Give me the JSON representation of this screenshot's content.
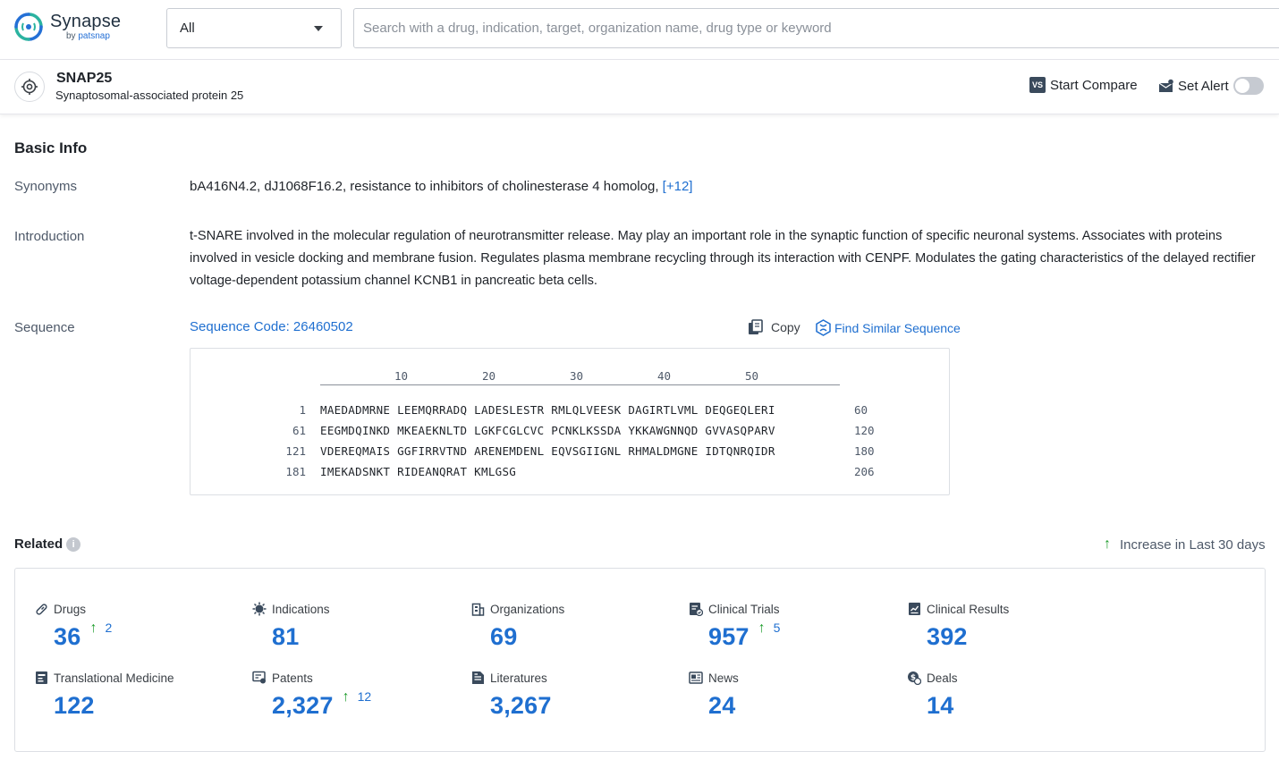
{
  "header": {
    "logo_name": "Synapse",
    "logo_by": "by",
    "logo_brand": "patsnap",
    "scope": "All",
    "search_placeholder": "Search with a drug, indication, target, organization name, drug type or keyword"
  },
  "entity": {
    "symbol": "SNAP25",
    "full_name": "Synaptosomal-associated protein 25",
    "start_compare_badge": "VS",
    "start_compare": "Start Compare",
    "set_alert": "Set Alert",
    "alert_on": false
  },
  "basic_info": {
    "title": "Basic Info",
    "synonyms_label": "Synonyms",
    "synonyms": "bA416N4.2,  dJ1068F16.2,  resistance to inhibitors of cholinesterase 4 homolog,",
    "synonyms_more": "[+12]",
    "introduction_label": "Introduction",
    "introduction": "t-SNARE involved in the molecular regulation of neurotransmitter release. May play an important role in the synaptic function of specific neuronal systems. Associates with proteins involved in vesicle docking and membrane fusion. Regulates plasma membrane recycling through its interaction with CENPF. Modulates the gating characteristics of the delayed rectifier voltage-dependent potassium channel KCNB1 in pancreatic beta cells.",
    "sequence_label": "Sequence",
    "sequence_code": "Sequence Code: 26460502",
    "copy": "Copy",
    "find_similar": "Find Similar Sequence",
    "ruler": [
      "10",
      "20",
      "30",
      "40",
      "50"
    ],
    "rows": [
      {
        "start": "1",
        "seq": "MAEDADMRNE LEEMQRRADQ LADESLESTR RMLQLVEESK DAGIRTLVML DEQGEQLERI",
        "end": "60"
      },
      {
        "start": "61",
        "seq": "EEGMDQINKD MKEAEKNLTD LGKFCGLCVC PCNKLKSSDA YKKAWGNNQD GVVASQPARV",
        "end": "120"
      },
      {
        "start": "121",
        "seq": "VDEREQMAIS GGFIRRVTND ARENEMDENL EQVSGIIGNL RHMALDMGNE IDTQNRQIDR",
        "end": "180"
      },
      {
        "start": "181",
        "seq": "IMEKADSNKT RIDEANQRAT KMLGSG",
        "end": "206"
      }
    ]
  },
  "related": {
    "title": "Related",
    "info": "i",
    "increase_legend": "Increase in Last 30 days",
    "up_arrow": "↑",
    "stats": [
      {
        "label": "Drugs",
        "value": "36",
        "increase": "2",
        "icon": "pill-icon"
      },
      {
        "label": "Indications",
        "value": "81",
        "increase": "",
        "icon": "virus-icon"
      },
      {
        "label": "Organizations",
        "value": "69",
        "increase": "",
        "icon": "building-icon"
      },
      {
        "label": "Clinical Trials",
        "value": "957",
        "increase": "5",
        "icon": "clipboard-icon"
      },
      {
        "label": "Clinical Results",
        "value": "392",
        "increase": "",
        "icon": "chart-doc-icon"
      },
      {
        "label": "Translational Medicine",
        "value": "122",
        "increase": "",
        "icon": "flask-doc-icon"
      },
      {
        "label": "Patents",
        "value": "2,327",
        "increase": "12",
        "icon": "patent-icon"
      },
      {
        "label": "Literatures",
        "value": "3,267",
        "increase": "",
        "icon": "document-icon"
      },
      {
        "label": "News",
        "value": "24",
        "increase": "",
        "icon": "newspaper-icon"
      },
      {
        "label": "Deals",
        "value": "14",
        "increase": "",
        "icon": "handshake-icon"
      }
    ]
  },
  "colors": {
    "accent": "#1f6fd0",
    "increase": "#1f9d2d"
  }
}
